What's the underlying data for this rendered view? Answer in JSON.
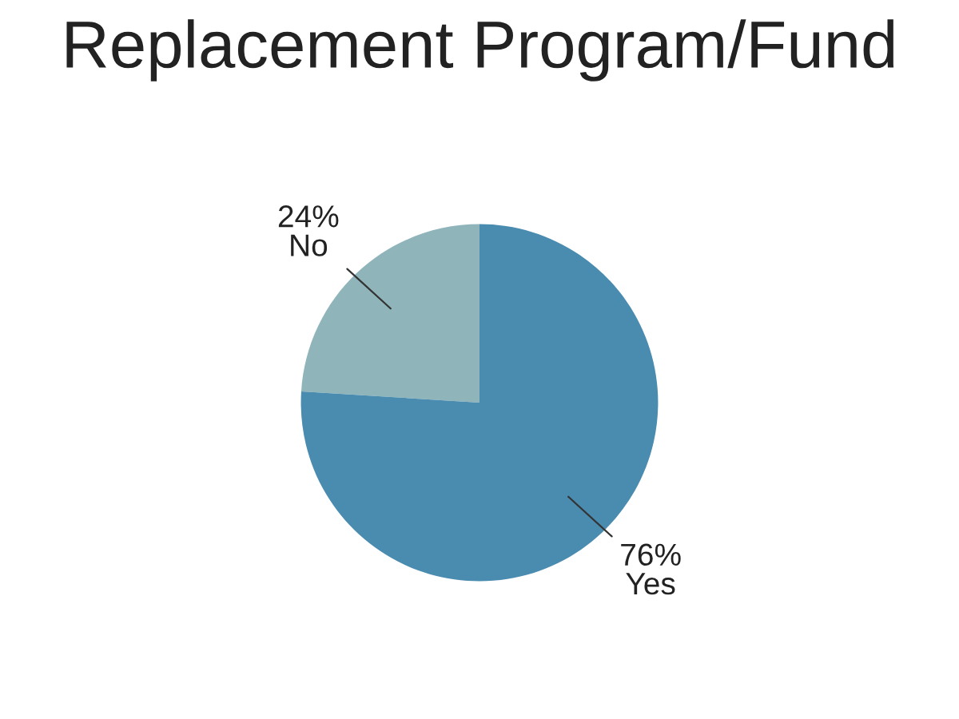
{
  "chart_data": {
    "type": "pie",
    "title": "Replacement Program/Fund",
    "categories": [
      "No",
      "Yes"
    ],
    "values": [
      24,
      76
    ],
    "colors": [
      "#8fb5bb",
      "#4a8cb0"
    ],
    "value_labels": [
      "24%",
      "76%"
    ],
    "legend": false
  }
}
